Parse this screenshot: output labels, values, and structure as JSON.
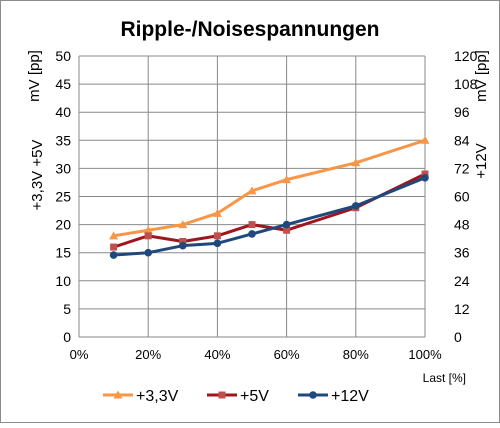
{
  "chart_data": {
    "type": "line",
    "title": "Ripple-/Noisespannungen",
    "xlabel": "Last [%]",
    "ylabel_left": "+3,3V +5V",
    "ylabel_left_unit": "mV [pp]",
    "ylabel_right": "+12V",
    "ylabel_right_unit": "mV [pp]",
    "x": [
      10,
      20,
      30,
      40,
      50,
      60,
      80,
      100
    ],
    "xlim": [
      0,
      100
    ],
    "xticks": [
      "0%",
      "20%",
      "40%",
      "60%",
      "80%",
      "100%"
    ],
    "ylim_left": [
      0,
      50
    ],
    "yticks_left": [
      "0",
      "5",
      "10",
      "15",
      "20",
      "25",
      "30",
      "35",
      "40",
      "45",
      "50"
    ],
    "ylim_right": [
      0,
      120
    ],
    "yticks_right": [
      "0",
      "12",
      "24",
      "36",
      "48",
      "60",
      "72",
      "84",
      "96",
      "108",
      "120"
    ],
    "grid": true,
    "legend_position": "bottom",
    "series": [
      {
        "name": "+3,3V",
        "axis": "left",
        "color": "#F79646",
        "marker": "triangle",
        "values": [
          18,
          19,
          20,
          22,
          26,
          28,
          31,
          35
        ]
      },
      {
        "name": "+5V",
        "axis": "left",
        "color": "#C0504D",
        "line_color": "#A0161E",
        "marker": "square",
        "values": [
          16,
          18,
          17,
          18,
          20,
          19,
          23,
          29
        ]
      },
      {
        "name": "+12V",
        "axis": "right",
        "color": "#1F497D",
        "marker": "circle",
        "values": [
          35,
          36,
          39,
          40,
          44,
          48,
          56,
          68
        ]
      }
    ]
  }
}
